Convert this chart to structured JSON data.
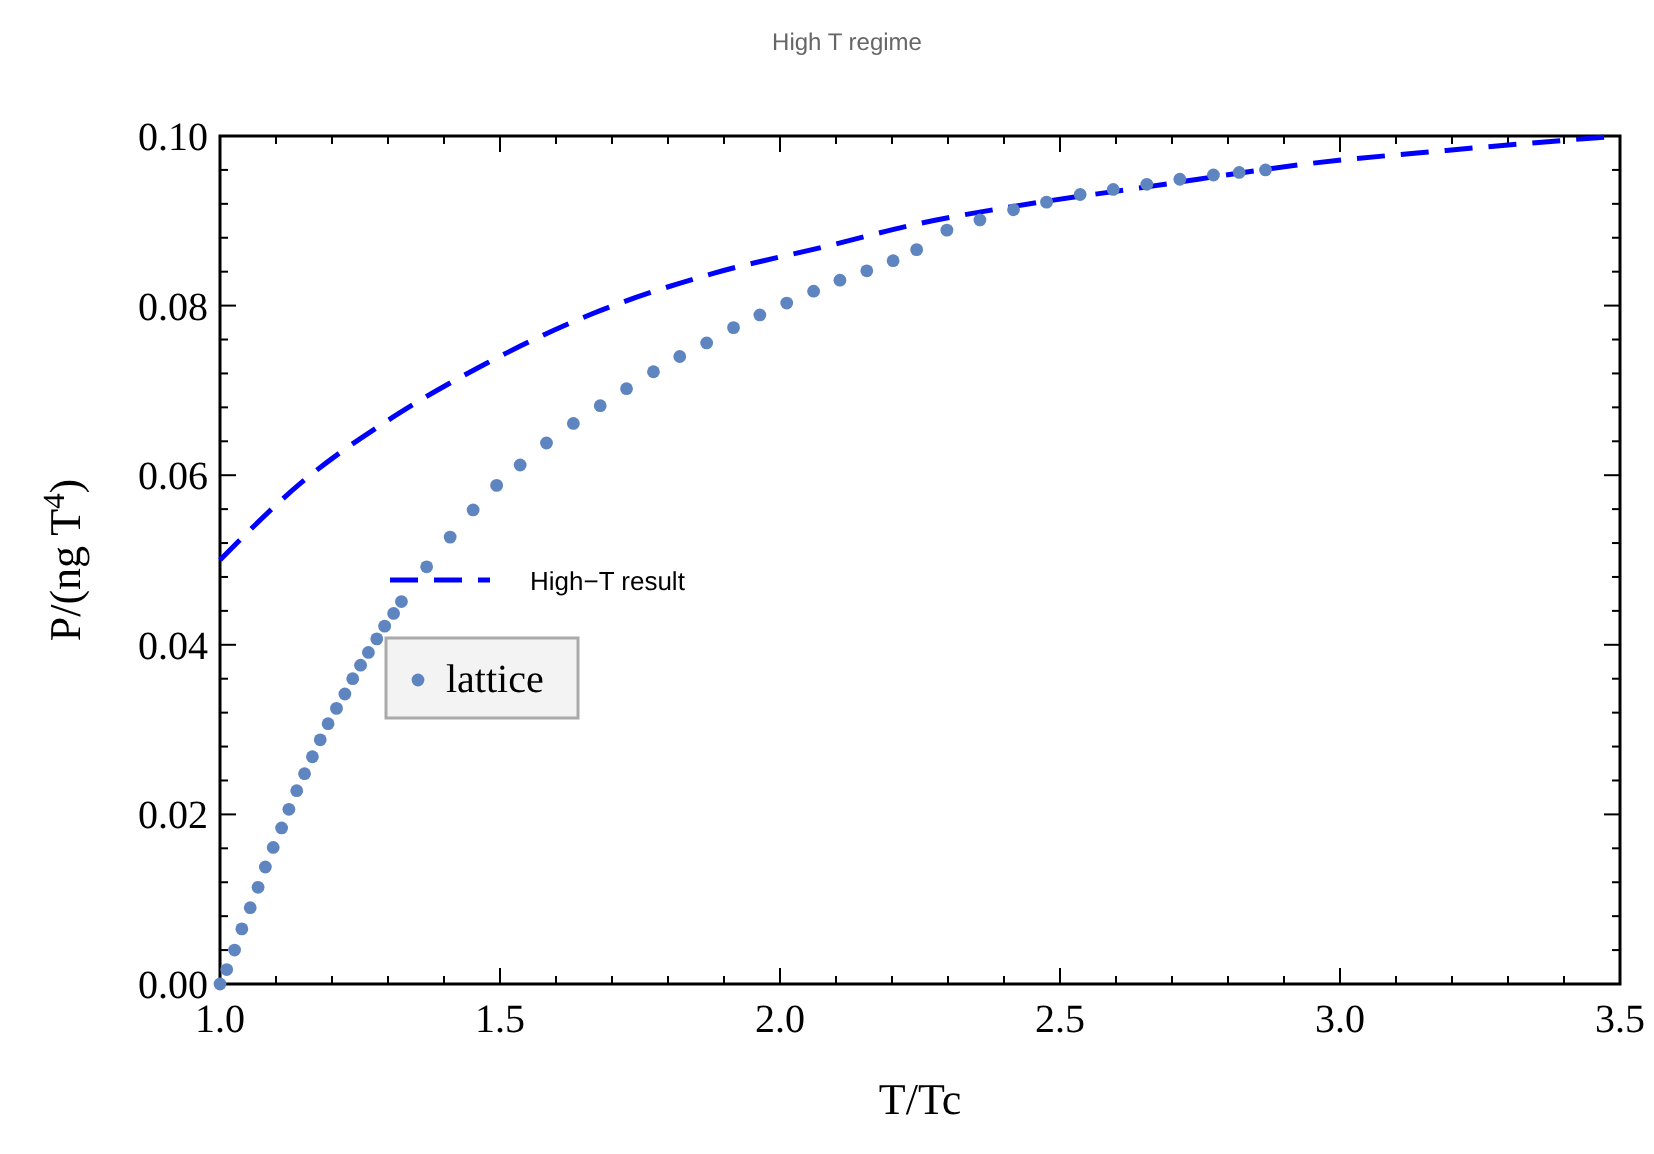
{
  "chart_data": {
    "type": "scatter",
    "title": "High T regime",
    "xlabel": "T/Tc",
    "ylabel": "P/(ng T$^{4}$)",
    "xlim": [
      1,
      3.5
    ],
    "ylim": [
      0,
      0.1
    ],
    "xticks": [
      {
        "value": 1,
        "label": "1.0"
      },
      {
        "value": 1.5,
        "label": "1.5"
      },
      {
        "value": 2,
        "label": "2.0"
      },
      {
        "value": 2.5,
        "label": "2.5"
      },
      {
        "value": 3,
        "label": "3.0"
      },
      {
        "value": 3.5,
        "label": "3.5"
      }
    ],
    "yticks": [
      {
        "value": 0,
        "label": "0.00"
      },
      {
        "value": 0.02,
        "label": "0.02"
      },
      {
        "value": 0.04,
        "label": "0.04"
      },
      {
        "value": 0.06,
        "label": "0.06"
      },
      {
        "value": 0.08,
        "label": "0.08"
      },
      {
        "value": 0.1,
        "label": "0.10"
      }
    ],
    "grid": false,
    "legend": "left",
    "series": [
      {
        "name": "High−T result",
        "type": "line",
        "marker": "none",
        "line_style": "dashed",
        "color": "#0000ff",
        "x": [
          1,
          1.143,
          1.31,
          1.476,
          1.667,
          1.881,
          2.083,
          2.25,
          2.417,
          2.655,
          2.952,
          3.19,
          3.46,
          3.5
        ],
        "values": [
          0.05,
          0.059,
          0.0669,
          0.0732,
          0.0791,
          0.0838,
          0.087,
          0.0897,
          0.0917,
          0.094,
          0.0968,
          0.0983,
          0.0998,
          0.1
        ]
      },
      {
        "name": "lattice",
        "marker": "circle",
        "color": "#5f85c0",
        "x": [
          1,
          1.012,
          1.026,
          1.039,
          1.054,
          1.068,
          1.081,
          1.095,
          1.11,
          1.123,
          1.137,
          1.151,
          1.165,
          1.179,
          1.193,
          1.208,
          1.223,
          1.237,
          1.251,
          1.265,
          1.28,
          1.294,
          1.31,
          1.324,
          1.369,
          1.411,
          1.452,
          1.494,
          1.536,
          1.583,
          1.631,
          1.679,
          1.726,
          1.774,
          1.821,
          1.869,
          1.917,
          1.964,
          2.012,
          2.06,
          2.107,
          2.155,
          2.202,
          2.244,
          2.298,
          2.357,
          2.417,
          2.476,
          2.536,
          2.595,
          2.655,
          2.714,
          2.774,
          2.82,
          2.867
        ],
        "values": [
          0,
          0.0017,
          0.004,
          0.0065,
          0.009,
          0.0114,
          0.0138,
          0.0161,
          0.0184,
          0.0206,
          0.0228,
          0.0248,
          0.0268,
          0.0288,
          0.0307,
          0.0325,
          0.0342,
          0.036,
          0.0376,
          0.0391,
          0.0407,
          0.0422,
          0.0437,
          0.0451,
          0.0492,
          0.0527,
          0.0559,
          0.0588,
          0.0612,
          0.0638,
          0.0661,
          0.0682,
          0.0702,
          0.0722,
          0.074,
          0.0756,
          0.0774,
          0.0789,
          0.0803,
          0.0817,
          0.083,
          0.0841,
          0.0853,
          0.0866,
          0.0889,
          0.0901,
          0.0913,
          0.0922,
          0.0931,
          0.0937,
          0.0943,
          0.0949,
          0.0954,
          0.0957,
          0.096
        ]
      }
    ]
  }
}
